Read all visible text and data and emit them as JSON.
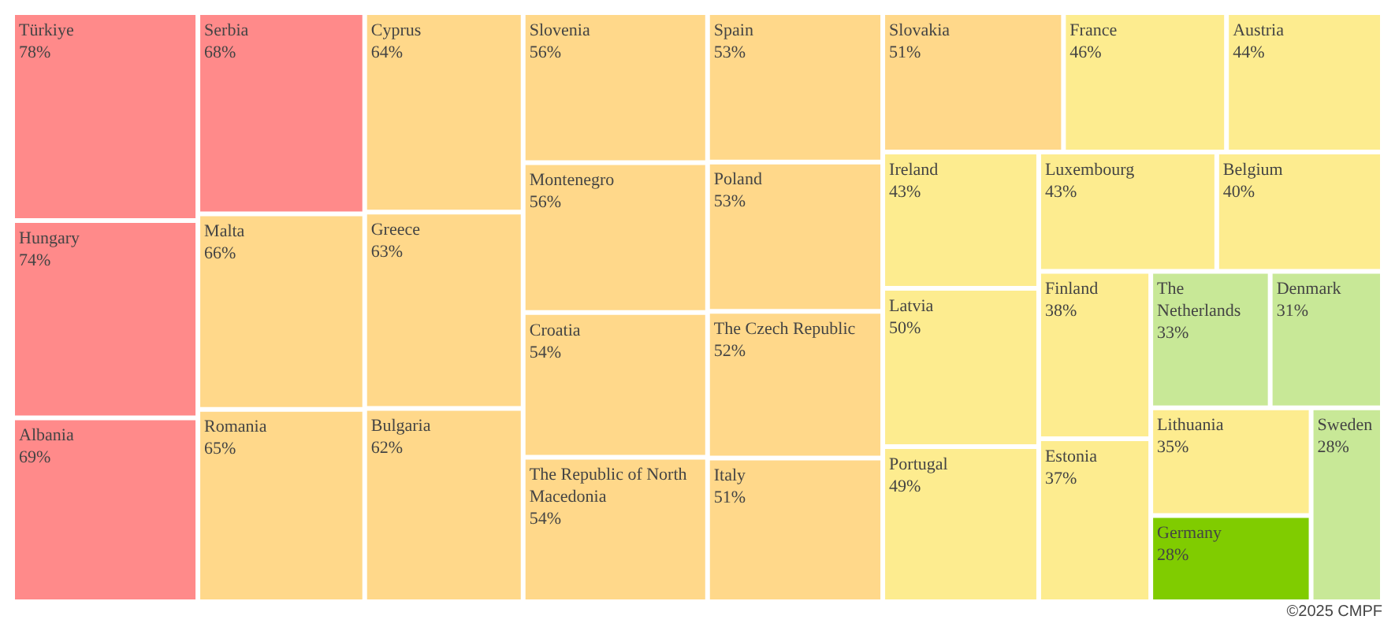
{
  "chart_data": {
    "type": "other",
    "categories": [
      "Türkiye",
      "Hungary",
      "Albania",
      "Serbia",
      "Malta",
      "Romania",
      "Cyprus",
      "Greece",
      "Bulgaria",
      "Slovenia",
      "Montenegro",
      "Croatia",
      "The Republic of North Macedonia",
      "Spain",
      "Poland",
      "The Czech Republic",
      "Italy",
      "Slovakia",
      "France",
      "Austria",
      "Ireland",
      "Latvia",
      "Portugal",
      "Luxembourg",
      "Belgium",
      "Finland",
      "Estonia",
      "The Netherlands",
      "Denmark",
      "Lithuania",
      "Germany",
      "Sweden"
    ],
    "values": [
      78,
      74,
      69,
      68,
      66,
      65,
      64,
      63,
      62,
      56,
      56,
      54,
      54,
      53,
      53,
      52,
      51,
      51,
      46,
      44,
      43,
      50,
      49,
      43,
      40,
      38,
      37,
      33,
      31,
      35,
      28,
      28
    ],
    "value_labels": [
      "78%",
      "74%",
      "69%",
      "68%",
      "66%",
      "65%",
      "64%",
      "63%",
      "62%",
      "56%",
      "56%",
      "54%",
      "54%",
      "53%",
      "53%",
      "52%",
      "51%",
      "51%",
      "46%",
      "44%",
      "43%",
      "50%",
      "49%",
      "43%",
      "40%",
      "38%",
      "37%",
      "33%",
      "31%",
      "35%",
      "28%",
      "28%"
    ],
    "colors": [
      "#ff8a8a",
      "#ff8a8a",
      "#ff8a8a",
      "#ff8a8a",
      "#ffd88a",
      "#ffd88a",
      "#ffd88a",
      "#ffd88a",
      "#ffd88a",
      "#ffd88a",
      "#ffd88a",
      "#ffd88a",
      "#ffd88a",
      "#ffd88a",
      "#ffd88a",
      "#ffd88a",
      "#ffd88a",
      "#ffd88a",
      "#fdec8f",
      "#fdec8f",
      "#fdec8f",
      "#fdec8f",
      "#fdec8f",
      "#fdec8f",
      "#fdec8f",
      "#fdec8f",
      "#fdec8f",
      "#c8e897",
      "#c8e897",
      "#fdec8f",
      "#80cc00",
      "#c8e897"
    ],
    "annotations": [
      "©2025 CMPF"
    ]
  }
}
